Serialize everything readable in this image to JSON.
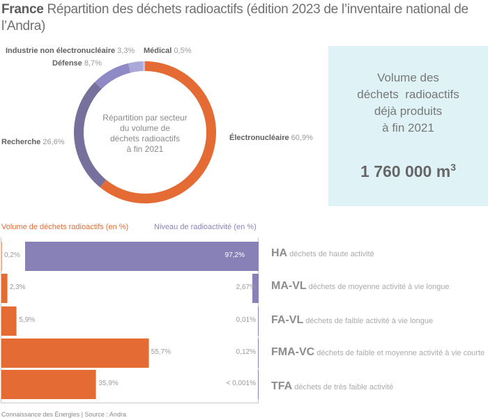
{
  "header": {
    "country": "France",
    "title": "Répartition des déchets radioactifs (édition 2023 de l’inventaire national de l’Andra)"
  },
  "donut": {
    "center_text": [
      "Répartition par secteur",
      "du volume de",
      "déchets radioactifs",
      "à fin 2021"
    ]
  },
  "kpi": {
    "lines": [
      "Volume des",
      "déchets  radioactifs",
      "déjà produits",
      "à fin 2021"
    ],
    "value": "1 760 000 m",
    "unit_sup": "3"
  },
  "bars_legend": {
    "volume": "Volume de déchets radioactifs (en %)",
    "radioactivity": "Niveau de radioactivité (en %)"
  },
  "footer": "Connaissance des Énergies | Source : Andra",
  "colors": {
    "electronucleaire": "#e46b33",
    "recherche": "#75709c",
    "defense": "#8f8ac6",
    "industrie": "#aba8da",
    "medical": "#c4c2ea",
    "volume": "#e46b33",
    "radioactivity": "#8781b8"
  },
  "chart_data": [
    {
      "type": "pie",
      "title": "Répartition par secteur du volume de déchets radioactifs à fin 2021",
      "donut": true,
      "slices": [
        {
          "name": "Électronucléaire",
          "value": 60.9,
          "label": "60,9%",
          "color": "#e46b33"
        },
        {
          "name": "Recherche",
          "value": 26.6,
          "label": "26,6%",
          "color": "#75709c"
        },
        {
          "name": "Défense",
          "value": 8.7,
          "label": "8,7%",
          "color": "#8f8ac6"
        },
        {
          "name": "Industrie non électronucléaire",
          "value": 3.3,
          "label": "3,3%",
          "color": "#aba8da"
        },
        {
          "name": "Médical",
          "value": 0.5,
          "label": "0,5%",
          "color": "#c4c2ea"
        }
      ]
    },
    {
      "type": "bar",
      "orientation": "horizontal",
      "categories": [
        {
          "code": "HA",
          "desc": "déchets de haute activité"
        },
        {
          "code": "MA-VL",
          "desc": "déchets de moyenne activité à vie longue"
        },
        {
          "code": "FA-VL",
          "desc": "déchets de faible activité à vie longue"
        },
        {
          "code": "FMA-VC",
          "desc": "déchets de faible et moyenne activité à vie courte"
        },
        {
          "code": "TFA",
          "desc": "déchets de très faible activité"
        }
      ],
      "series": [
        {
          "name": "Volume de déchets radioactifs (en %)",
          "values": [
            0.2,
            2.3,
            5.9,
            55.7,
            35.9
          ],
          "labels": [
            "0,2%",
            "2,3%",
            "5,9%",
            "55,7%",
            "35,9%"
          ]
        },
        {
          "name": "Niveau de radioactivité (en %)",
          "values": [
            97.2,
            2.67,
            0.01,
            0.12,
            0.001
          ],
          "labels": [
            "97,2%",
            "2,67%",
            "0,01%",
            "0,12%",
            "< 0,001%"
          ]
        }
      ],
      "xlim": [
        0,
        100
      ]
    }
  ]
}
